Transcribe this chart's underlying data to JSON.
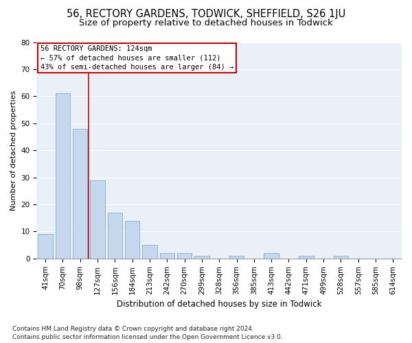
{
  "title1": "56, RECTORY GARDENS, TODWICK, SHEFFIELD, S26 1JU",
  "title2": "Size of property relative to detached houses in Todwick",
  "xlabel": "Distribution of detached houses by size in Todwick",
  "ylabel": "Number of detached properties",
  "categories": [
    "41sqm",
    "70sqm",
    "98sqm",
    "127sqm",
    "156sqm",
    "184sqm",
    "213sqm",
    "242sqm",
    "270sqm",
    "299sqm",
    "328sqm",
    "356sqm",
    "385sqm",
    "413sqm",
    "442sqm",
    "471sqm",
    "499sqm",
    "528sqm",
    "557sqm",
    "585sqm",
    "614sqm"
  ],
  "values": [
    9,
    61,
    48,
    29,
    17,
    14,
    5,
    2,
    2,
    1,
    0,
    1,
    0,
    2,
    0,
    1,
    0,
    1,
    0,
    0,
    0
  ],
  "bar_color": "#c5d8ed",
  "bar_edge_color": "#7bafd4",
  "vline_x": 2.5,
  "vline_color": "#cc0000",
  "annotation_line1": "56 RECTORY GARDENS: 124sqm",
  "annotation_line2": "← 57% of detached houses are smaller (112)",
  "annotation_line3": "43% of semi-detached houses are larger (84) →",
  "annotation_box_color": "#cc0000",
  "ylim": [
    0,
    80
  ],
  "yticks": [
    0,
    10,
    20,
    30,
    40,
    50,
    60,
    70,
    80
  ],
  "footnote": "Contains HM Land Registry data © Crown copyright and database right 2024.\nContains public sector information licensed under the Open Government Licence v3.0.",
  "bg_color": "#eaf0f8",
  "grid_color": "#ffffff",
  "title1_fontsize": 10.5,
  "title2_fontsize": 9.5,
  "xlabel_fontsize": 8.5,
  "ylabel_fontsize": 8,
  "tick_fontsize": 7.5,
  "footnote_fontsize": 6.5,
  "annotation_fontsize": 7.5
}
